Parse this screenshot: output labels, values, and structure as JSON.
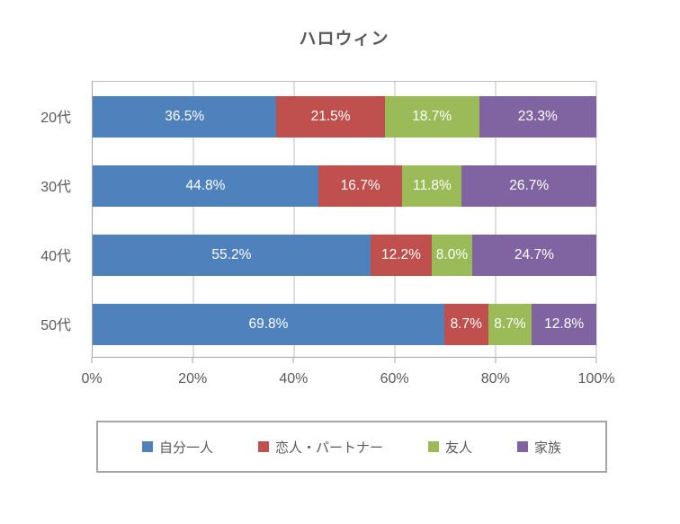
{
  "chart_data": {
    "type": "bar",
    "subtype": "horizontal-stacked-100",
    "title": "ハロウィン",
    "categories": [
      "20代",
      "30代",
      "40代",
      "50代"
    ],
    "series": [
      {
        "name": "自分一人",
        "color": "#4F81BD",
        "values": [
          36.5,
          44.8,
          55.2,
          69.8
        ]
      },
      {
        "name": "恋人・パートナー",
        "color": "#C0504D",
        "values": [
          21.5,
          16.7,
          12.2,
          8.7
        ]
      },
      {
        "name": "友人",
        "color": "#9BBB59",
        "values": [
          18.7,
          11.8,
          8.0,
          8.7
        ]
      },
      {
        "name": "家族",
        "color": "#8064A2",
        "values": [
          23.3,
          26.7,
          24.7,
          12.8
        ]
      }
    ],
    "labels": [
      [
        "36.5%",
        "21.5%",
        "18.7%",
        "23.3%"
      ],
      [
        "44.8%",
        "16.7%",
        "11.8%",
        "26.7%"
      ],
      [
        "55.2%",
        "12.2%",
        "8.0%",
        "24.7%"
      ],
      [
        "69.8%",
        "8.7%",
        "8.7%",
        "12.8%"
      ]
    ],
    "x_axis": {
      "min": 0,
      "max": 100,
      "tick_values": [
        0,
        20,
        40,
        60,
        80,
        100
      ],
      "ticks": [
        "0%",
        "20%",
        "40%",
        "60%",
        "80%",
        "100%"
      ]
    },
    "grid": true,
    "legend_position": "bottom",
    "colors": {
      "text": "#595959",
      "data_label_text": "#FFFFFF",
      "gridline": "#BFBFBF",
      "axis_line": "#A6A6A6",
      "legend_border": "#A6A6A6",
      "background": "#FFFFFF"
    }
  }
}
